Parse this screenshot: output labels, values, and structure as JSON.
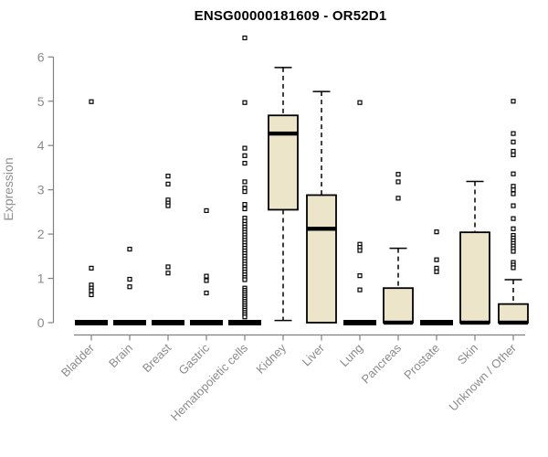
{
  "chart_data": {
    "type": "boxplot",
    "title": "ENSG00000181609 - OR52D1",
    "ylabel": "Expression",
    "xlabel": "",
    "ylim": [
      0,
      6.5
    ],
    "yticks": [
      0,
      1,
      2,
      3,
      4,
      5,
      6
    ],
    "grid": false,
    "legend": "none",
    "categories": [
      "Bladder",
      "Brain",
      "Breast",
      "Gastric",
      "Hematopoietic cells",
      "Kidney",
      "Liver",
      "Lung",
      "Pancreas",
      "Prostate",
      "Skin",
      "Unknown / Other"
    ],
    "colors": {
      "box_fill": "#ede5c9",
      "box_stroke": "#000000",
      "median": "#000000",
      "axis_line": "#808080",
      "axis_text": "#8a8a8a",
      "title_text": "#000000",
      "outlier_stroke": "#000000",
      "background": "#ffffff"
    },
    "series": [
      {
        "category": "Bladder",
        "whisker_low": 0,
        "q1": 0,
        "median": 0,
        "q3": 0,
        "whisker_high": 0,
        "outliers": [
          4.99,
          1.23,
          0.85,
          0.78,
          0.72,
          0.63
        ]
      },
      {
        "category": "Brain",
        "whisker_low": 0,
        "q1": 0,
        "median": 0,
        "q3": 0,
        "whisker_high": 0,
        "outliers": [
          1.66,
          0.98,
          0.81
        ]
      },
      {
        "category": "Breast",
        "whisker_low": 0,
        "q1": 0,
        "median": 0,
        "q3": 0,
        "whisker_high": 0,
        "outliers": [
          3.31,
          3.13,
          2.77,
          2.7,
          2.64,
          1.26,
          1.12
        ]
      },
      {
        "category": "Gastric",
        "whisker_low": 0,
        "q1": 0,
        "median": 0,
        "q3": 0,
        "whisker_high": 0,
        "outliers": [
          2.53,
          1.05,
          0.95,
          0.67
        ]
      },
      {
        "category": "Hematopoietic cells",
        "whisker_low": 0,
        "q1": 0,
        "median": 0,
        "q3": 0,
        "whisker_high": 0,
        "outliers": [
          6.43,
          4.97,
          3.94,
          3.77,
          3.6,
          3.18,
          3.04,
          2.96,
          2.67,
          2.57,
          2.36,
          2.29,
          2.22,
          2.16,
          2.1,
          2.04,
          1.98,
          1.92,
          1.86,
          1.8,
          1.74,
          1.68,
          1.62,
          1.56,
          1.5,
          1.44,
          1.38,
          1.32,
          1.26,
          1.2,
          1.14,
          1.08,
          1.02,
          0.97,
          0.78,
          0.73,
          0.68,
          0.63,
          0.58,
          0.53,
          0.48,
          0.43,
          0.38,
          0.33,
          0.28,
          0.23,
          0.18,
          0.13
        ]
      },
      {
        "category": "Kidney",
        "whisker_low": 0.05,
        "q1": 2.55,
        "median": 4.27,
        "q3": 4.68,
        "whisker_high": 5.76,
        "outliers": []
      },
      {
        "category": "Liver",
        "whisker_low": 0,
        "q1": 0,
        "median": 2.12,
        "q3": 2.88,
        "whisker_high": 5.22,
        "outliers": []
      },
      {
        "category": "Lung",
        "whisker_low": 0,
        "q1": 0,
        "median": 0,
        "q3": 0,
        "whisker_high": 0,
        "outliers": [
          4.97,
          1.77,
          1.7,
          1.63,
          1.06,
          0.74
        ]
      },
      {
        "category": "Pancreas",
        "whisker_low": 0,
        "q1": 0,
        "median": 0,
        "q3": 0.78,
        "whisker_high": 1.68,
        "outliers": [
          3.35,
          3.18,
          2.81
        ]
      },
      {
        "category": "Prostate",
        "whisker_low": 0,
        "q1": 0,
        "median": 0,
        "q3": 0,
        "whisker_high": 0,
        "outliers": [
          2.05,
          1.42,
          1.23,
          1.15
        ]
      },
      {
        "category": "Skin",
        "whisker_low": 0,
        "q1": 0,
        "median": 0,
        "q3": 2.04,
        "whisker_high": 3.19,
        "outliers": []
      },
      {
        "category": "Unknown / Other",
        "whisker_low": 0,
        "q1": 0,
        "median": 0,
        "q3": 0.42,
        "whisker_high": 0.97,
        "outliers": [
          5.0,
          4.27,
          4.08,
          3.87,
          3.79,
          3.36,
          3.08,
          3.0,
          2.91,
          2.64,
          2.35,
          2.12,
          1.97,
          1.91,
          1.85,
          1.79,
          1.73,
          1.67,
          1.61,
          1.36,
          1.3,
          1.24
        ]
      }
    ]
  }
}
